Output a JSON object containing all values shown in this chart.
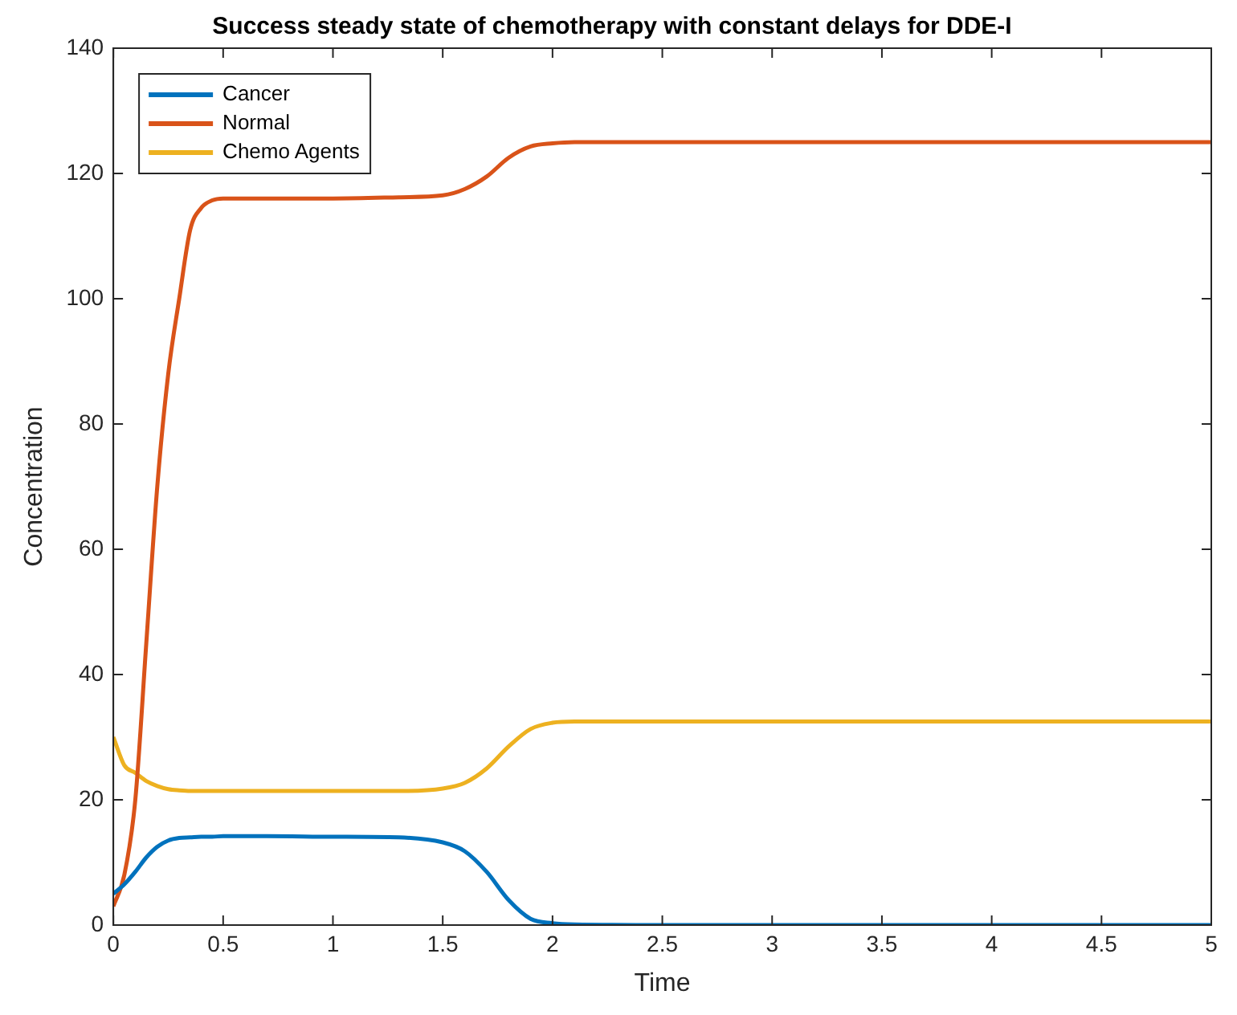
{
  "chart_data": {
    "type": "line",
    "title": "Success steady state of chemotherapy with constant delays for DDE-I",
    "xlabel": "Time",
    "ylabel": "Concentration",
    "x": [
      0,
      0.05,
      0.1,
      0.15,
      0.2,
      0.25,
      0.3,
      0.35,
      0.4,
      0.45,
      0.5,
      0.7,
      1,
      1.3,
      1.5,
      1.6,
      1.7,
      1.8,
      1.9,
      2,
      2.1,
      2.5,
      3,
      4,
      5
    ],
    "series": [
      {
        "name": "Cancer",
        "color": "#0072bd",
        "values": [
          5,
          6.5,
          8.5,
          10.8,
          12.5,
          13.5,
          13.9,
          14,
          14.1,
          14.1,
          14.2,
          14.2,
          14.1,
          14,
          13.2,
          11.8,
          8.5,
          4,
          1,
          0.3,
          0.1,
          0,
          0,
          0,
          0
        ]
      },
      {
        "name": "Normal",
        "color": "#d95319",
        "values": [
          3,
          8,
          20,
          45,
          70,
          88,
          100,
          111,
          114.5,
          115.7,
          116,
          116,
          116,
          116.2,
          116.5,
          117.5,
          119.5,
          122.5,
          124.3,
          124.8,
          125,
          125,
          125,
          125,
          125
        ]
      },
      {
        "name": "Chemo Agents",
        "color": "#edb120",
        "values": [
          30,
          25.5,
          24.3,
          23,
          22.2,
          21.7,
          21.5,
          21.4,
          21.4,
          21.4,
          21.4,
          21.4,
          21.4,
          21.4,
          21.8,
          22.7,
          25,
          28.5,
          31.3,
          32.3,
          32.5,
          32.5,
          32.5,
          32.5,
          32.5
        ]
      }
    ],
    "xlim": [
      0,
      5
    ],
    "xticks": [
      0,
      0.5,
      1,
      1.5,
      2,
      2.5,
      3,
      3.5,
      4,
      4.5,
      5
    ],
    "ylim": [
      0,
      140
    ],
    "yticks": [
      0,
      20,
      40,
      60,
      80,
      100,
      120,
      140
    ],
    "grid": false,
    "legend": "top left",
    "marker": "none",
    "line_style": "solid"
  }
}
